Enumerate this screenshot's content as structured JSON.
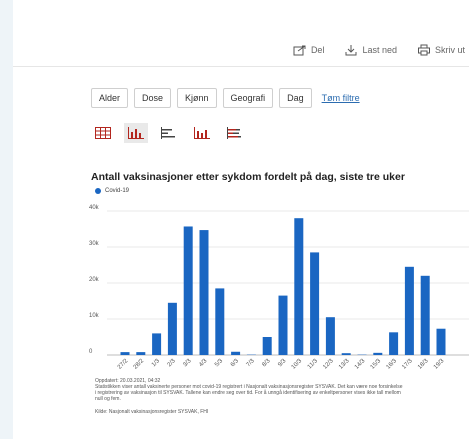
{
  "toolbar": {
    "share_label": "Del",
    "download_label": "Last ned",
    "print_label": "Skriv ut"
  },
  "filters": {
    "buttons": [
      "Alder",
      "Dose",
      "Kjønn",
      "Geografi",
      "Dag"
    ],
    "clear_label": "Tøm filtre"
  },
  "views": [
    "table-icon",
    "bar-chart-icon",
    "horizontal-bar-icon",
    "stacked-bar-icon",
    "stacked-horizontal-icon"
  ],
  "chart_data": {
    "type": "bar",
    "title": "Antall vaksinasjoner etter sykdom fordelt på dag, siste tre uker",
    "categories": [
      "27/2",
      "28/2",
      "1/3",
      "2/3",
      "3/3",
      "4/3",
      "5/3",
      "6/3",
      "7/3",
      "8/3",
      "9/3",
      "10/3",
      "11/3",
      "12/3",
      "13/3",
      "14/3",
      "15/3",
      "16/3",
      "17/3",
      "18/3",
      "19/3"
    ],
    "series": [
      {
        "name": "Covid-19",
        "color": "#1a66c2",
        "values": [
          800,
          800,
          6000,
          14500,
          35700,
          34700,
          18500,
          900,
          100,
          5000,
          16500,
          38000,
          28500,
          10500,
          500,
          100,
          600,
          6300,
          24500,
          22000,
          7300
        ]
      }
    ],
    "yticks": [
      "0",
      "10k",
      "20k",
      "30k",
      "40k"
    ],
    "ylim": [
      0,
      40000
    ],
    "grid": true
  },
  "footer": {
    "updated": "Oppdatert: 20.03.2021, 04:32",
    "note_line1": "Statistikken viser antall vaksinerte personer mot covid-19 registrert i Nasjonalt vaksinasjonsregister SYSVAK. Det kan være noe forsinkelse",
    "note_line2": "i registrering av vaksinasjon til SYSVAK. Tallene kan endre seg over tid. For å unngå identifisering av enkeltpersoner vises ikke tall mellom",
    "note_line3": "null og fem.",
    "source": "Kilde: Nasjonalt vaksinasjonsregister SYSVAK, FHI"
  }
}
